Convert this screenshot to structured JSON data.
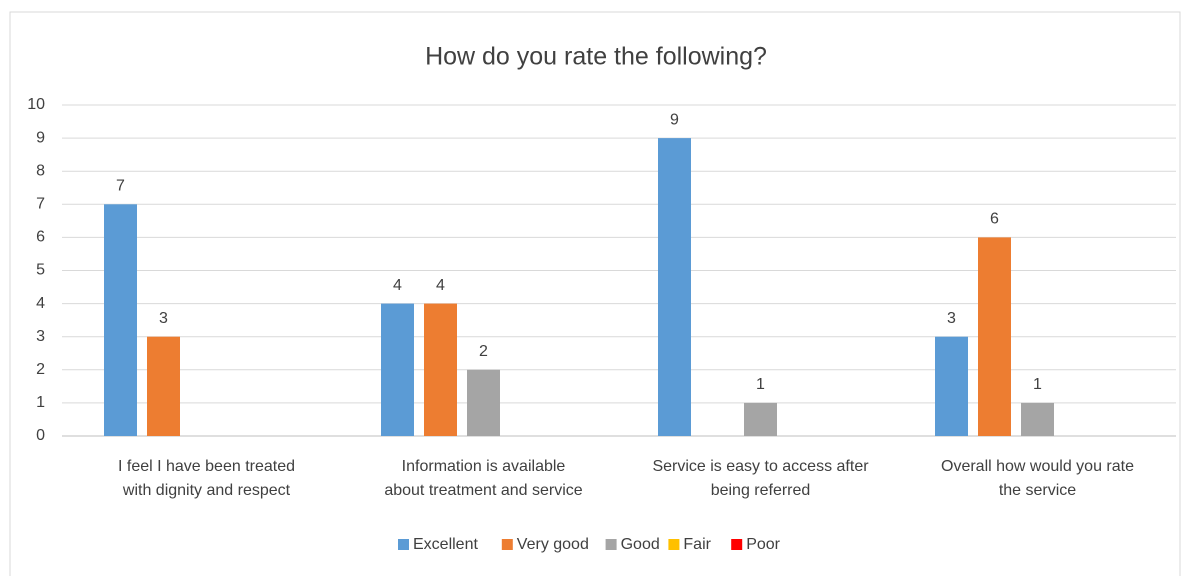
{
  "chart_data": {
    "type": "bar",
    "title": "How do you rate the following?",
    "categories": [
      [
        "I feel I have been treated",
        "with dignity and respect"
      ],
      [
        "Information is available",
        "about treatment and service"
      ],
      [
        "Service is easy to access after",
        "being referred"
      ],
      [
        "Overall how would you rate",
        "the service"
      ]
    ],
    "series": [
      {
        "name": "Excellent",
        "color": "#5b9bd5",
        "values": [
          7,
          4,
          9,
          3
        ]
      },
      {
        "name": "Very good",
        "color": "#ed7d31",
        "values": [
          3,
          4,
          null,
          6
        ]
      },
      {
        "name": "Good",
        "color": "#a5a5a5",
        "values": [
          null,
          2,
          1,
          1
        ]
      },
      {
        "name": "Fair",
        "color": "#ffc000",
        "values": [
          null,
          null,
          null,
          null
        ]
      },
      {
        "name": "Poor",
        "color": "#ff0000",
        "values": [
          null,
          null,
          null,
          null
        ]
      }
    ],
    "ylim": [
      0,
      10
    ],
    "yticks": [
      0,
      1,
      2,
      3,
      4,
      5,
      6,
      7,
      8,
      9,
      10
    ],
    "grid": true,
    "legend": "bottom"
  }
}
